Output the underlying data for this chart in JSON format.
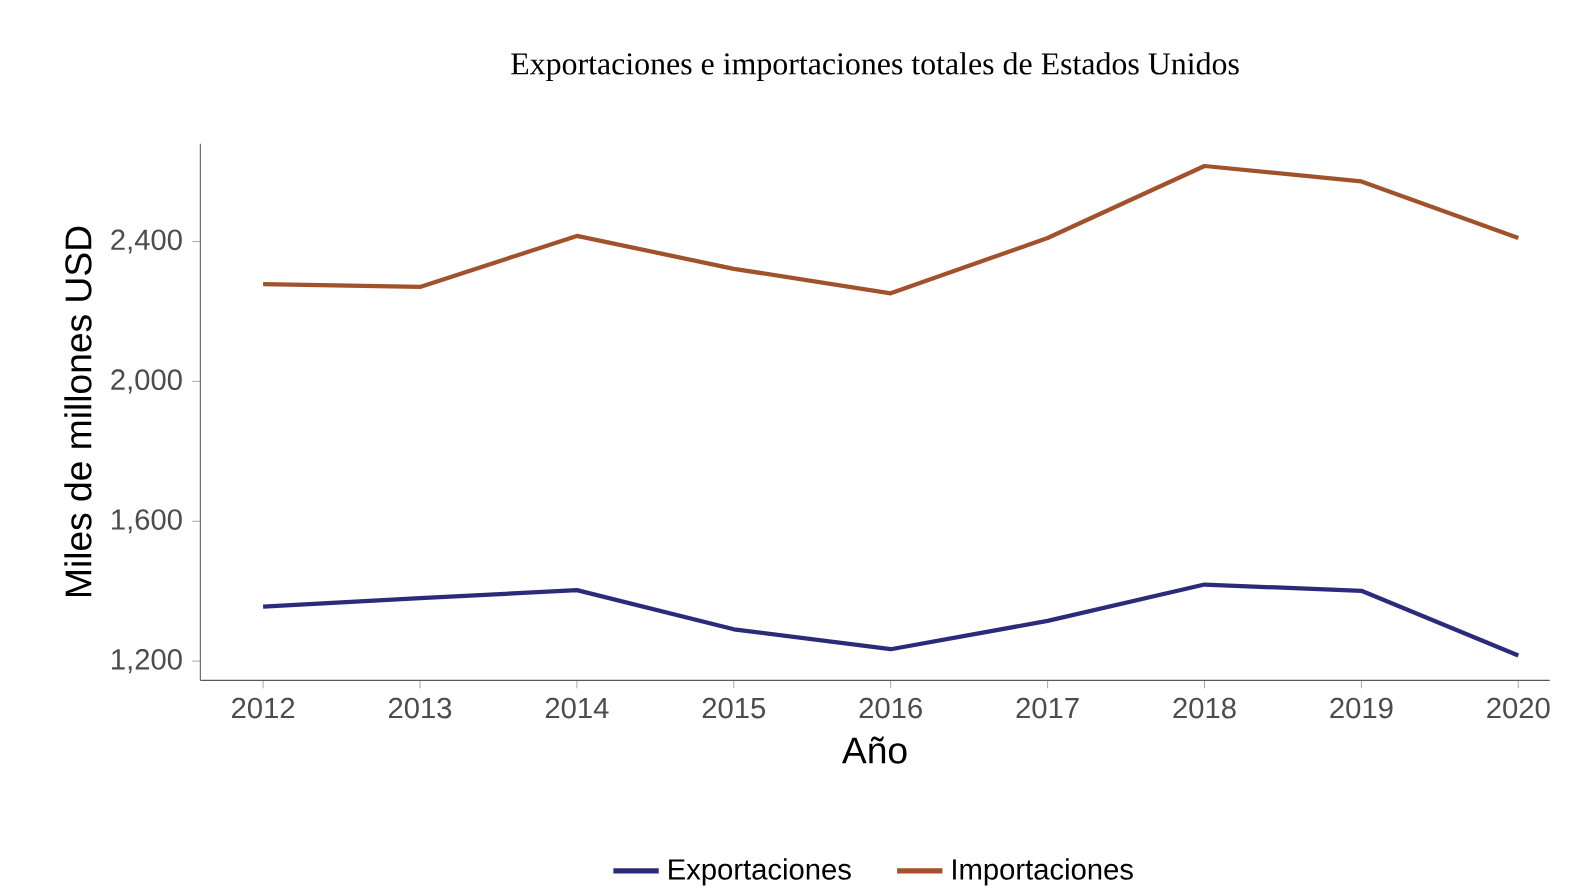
{
  "chart_data": {
    "type": "line",
    "title": "Exportaciones e importaciones totales de Estados Unidos",
    "xlabel": "Año",
    "ylabel": "Miles de millones USD",
    "categories": [
      "2012",
      "2013",
      "2014",
      "2015",
      "2016",
      "2017",
      "2018",
      "2019",
      "2020"
    ],
    "series": [
      {
        "name": "Exportaciones",
        "color": "#2b2b7a",
        "values": [
          1356,
          1380,
          1403,
          1291,
          1234,
          1315,
          1419,
          1401,
          1216
        ]
      },
      {
        "name": "Importaciones",
        "color": "#a0522d",
        "values": [
          2278,
          2270,
          2416,
          2322,
          2252,
          2410,
          2616,
          2572,
          2410
        ]
      }
    ],
    "ylim": [
      1145,
      2680
    ],
    "yticks": [
      {
        "value": 1200,
        "label": "1,200"
      },
      {
        "value": 1600,
        "label": "1,600"
      },
      {
        "value": 2000,
        "label": "2,000"
      },
      {
        "value": 2400,
        "label": "2,400"
      }
    ],
    "grid": false,
    "legend": "bottom",
    "marker": "none",
    "line_style": "solid"
  }
}
